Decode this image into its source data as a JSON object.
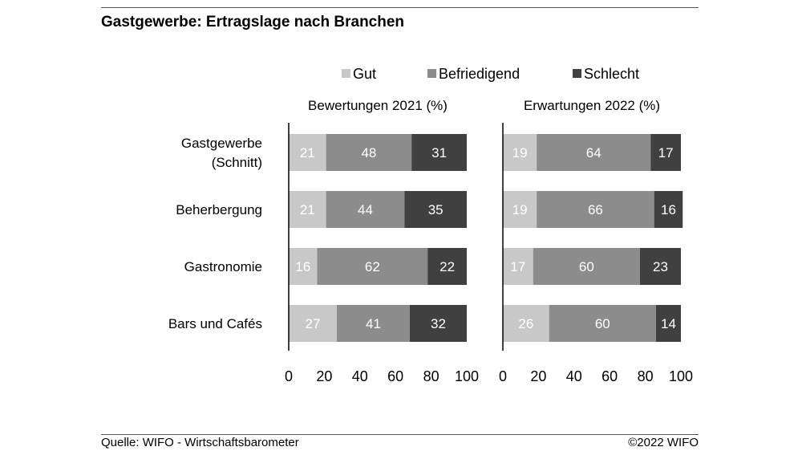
{
  "title": "Gastgewerbe: Ertragslage nach Branchen",
  "source": "Quelle: WIFO - Wirtschaftsbarometer",
  "copyright": "©2022 WIFO",
  "colors": {
    "Gut": "#c8c8c8",
    "Befriedigend": "#8c8c8c",
    "Schlecht": "#404040"
  },
  "chart_data": {
    "type": "bar",
    "orientation": "horizontal",
    "stacked": true,
    "legend": [
      "Gut",
      "Befriedigend",
      "Schlecht"
    ],
    "legend_position": "top",
    "categories": [
      [
        "Gastgewerbe",
        "(Schnitt)"
      ],
      [
        "Beherbergung"
      ],
      [
        "Gastronomie"
      ],
      [
        "Bars und Cafés"
      ]
    ],
    "xlim": [
      0,
      100
    ],
    "xticks": [
      "0",
      "20",
      "40",
      "60",
      "80",
      "100"
    ],
    "grid": false,
    "panels": [
      {
        "title": "Bewertungen 2021 (%)",
        "series": [
          {
            "name": "Gut",
            "values": [
              21,
              21,
              16,
              27
            ]
          },
          {
            "name": "Befriedigend",
            "values": [
              48,
              44,
              62,
              41
            ]
          },
          {
            "name": "Schlecht",
            "values": [
              31,
              35,
              22,
              32
            ]
          }
        ]
      },
      {
        "title": "Erwartungen 2022 (%)",
        "series": [
          {
            "name": "Gut",
            "values": [
              19,
              19,
              17,
              26
            ]
          },
          {
            "name": "Befriedigend",
            "values": [
              64,
              66,
              60,
              60
            ]
          },
          {
            "name": "Schlecht",
            "values": [
              17,
              16,
              23,
              14
            ]
          }
        ]
      }
    ]
  }
}
